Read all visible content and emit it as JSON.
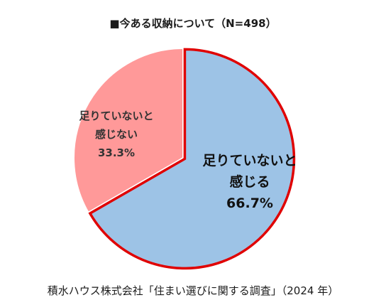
{
  "chart_data": {
    "type": "pie",
    "title": "■今ある収納について（N=498）",
    "slices": [
      {
        "name": "足りていないと感じる",
        "label_lines": [
          "足りていないと",
          "感じる"
        ],
        "value": 66.7,
        "value_label": "66.7%",
        "color": "#9dc3e6",
        "highlight": true,
        "highlight_color": "#e00000"
      },
      {
        "name": "足りていないと感じない",
        "label_lines": [
          "足りていないと",
          "感じない"
        ],
        "value": 33.3,
        "value_label": "33.3%",
        "color": "#ff9999",
        "highlight": false
      }
    ],
    "start_angle_deg": 0,
    "direction": "clockwise"
  },
  "source": "積水ハウス株式会社「住まい選びに関する調査」（2024 年）"
}
